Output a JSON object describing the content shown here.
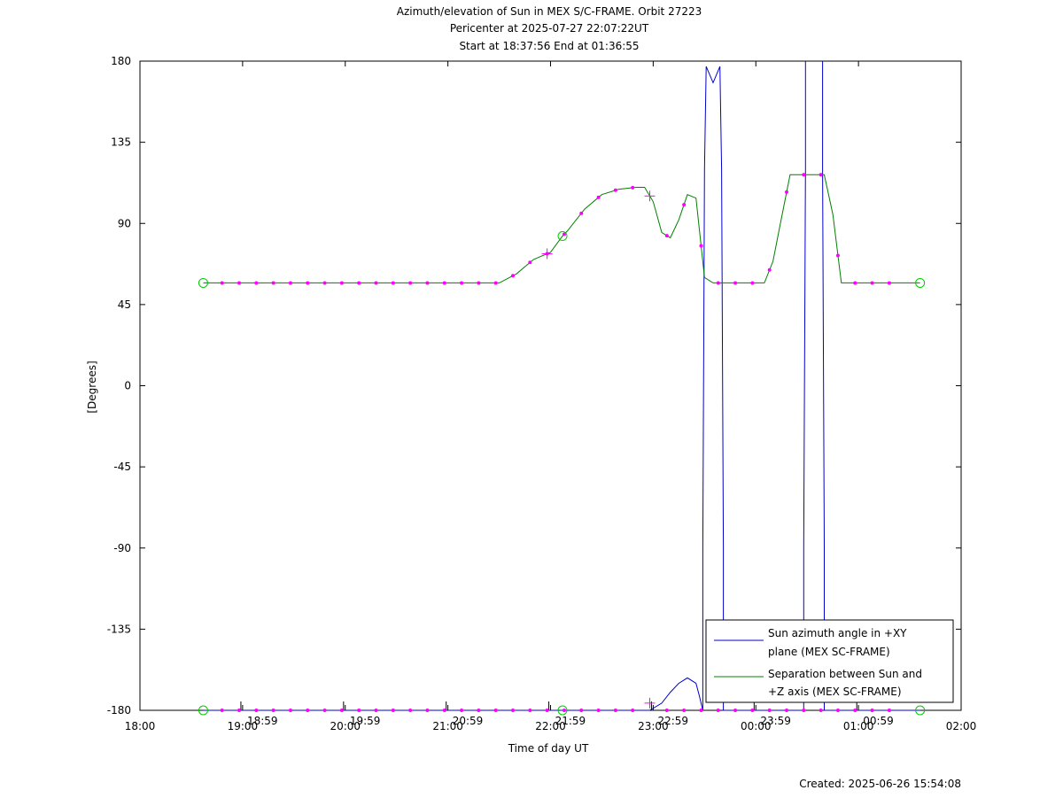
{
  "chart_data": {
    "type": "line",
    "title_lines": [
      "Azimuth/elevation of Sun in MEX S/C-FRAME.  Orbit 27223",
      "Pericenter at 2025-07-27 22:07:22UT",
      "Start at 18:37:56 End at 01:36:55"
    ],
    "xlabel": "Time of day UT",
    "ylabel": "[Degrees]",
    "xlim": [
      "18:00",
      "02:00"
    ],
    "ylim": [
      -180,
      180
    ],
    "x_ticks": [
      "18:00",
      "19:00",
      "20:00",
      "21:00",
      "22:00",
      "23:00",
      "00:00",
      "01:00",
      "02:00"
    ],
    "y_ticks": [
      180,
      135,
      90,
      45,
      0,
      -45,
      -90,
      -135,
      -180
    ],
    "secondary_time_labels": [
      "18:59",
      "19:59",
      "20:59",
      "21:59",
      "22:59",
      "23:59",
      "00:59"
    ],
    "grid": false,
    "legend_position": "bottom-right",
    "colors": {
      "azimuth": "#0000cc",
      "separation": "#008000",
      "markers": "#ff00ff",
      "endpoints": "#00cc00"
    },
    "series": [
      {
        "name": "Sun azimuth angle in +XY plane (MEX SC-FRAME)",
        "legend_lines": [
          "Sun azimuth angle in +XY",
          "plane (MEX SC-FRAME)"
        ],
        "segments": [
          {
            "x": [
              "18:37",
              "19:30",
              "20:30",
              "21:30",
              "22:30",
              "22:58",
              "23:05",
              "23:10",
              "23:15",
              "23:20",
              "23:25",
              "23:27",
              "23:29"
            ],
            "y": [
              -180,
              -180,
              -180,
              -180,
              -180,
              -180,
              -176,
              -170,
              -165,
              -162,
              -165,
              -172,
              -180
            ]
          },
          {
            "x": [
              "23:29",
              "23:29",
              "23:30",
              "23:31",
              "23:35",
              "23:39",
              "23:40",
              "23:41",
              "23:41"
            ],
            "y": [
              -180,
              -90,
              120,
              177,
              168,
              177,
              120,
              -90,
              -180
            ]
          },
          {
            "x": [
              "23:41",
              "23:55",
              "24:10",
              "24:28"
            ],
            "y": [
              -180,
              -180,
              -180,
              -180
            ]
          },
          {
            "x": [
              "24:28",
              "24:28",
              "24:29",
              "24:29"
            ],
            "y": [
              -180,
              -90,
              120,
              180
            ]
          },
          {
            "x": [
              "24:39",
              "24:39",
              "24:40",
              "24:40"
            ],
            "y": [
              180,
              120,
              -90,
              -180
            ]
          },
          {
            "x": [
              "24:40",
              "25:00",
              "25:20",
              "25:36"
            ],
            "y": [
              -180,
              -180,
              -180,
              -180
            ]
          }
        ]
      },
      {
        "name": "Separation between Sun and +Z axis (MEX SC-FRAME)",
        "legend_lines": [
          "Separation between Sun and",
          "+Z axis (MEX SC-FRAME)"
        ],
        "x": [
          "18:37",
          "21:00",
          "21:30",
          "21:40",
          "21:50",
          "22:00",
          "22:07",
          "22:10",
          "22:20",
          "22:30",
          "22:40",
          "22:50",
          "22:55",
          "23:00",
          "23:05",
          "23:10",
          "23:15",
          "23:20",
          "23:25",
          "23:30",
          "23:35",
          "23:40",
          "23:41",
          "23:45",
          "23:55",
          "24:05",
          "24:10",
          "24:15",
          "24:20",
          "24:25",
          "24:30",
          "24:40",
          "24:45",
          "24:50",
          "24:55",
          "25:00",
          "25:36"
        ],
        "y": [
          57,
          57,
          57,
          62,
          70,
          74,
          83,
          86,
          98,
          106,
          109,
          110,
          110,
          102,
          85,
          82,
          92,
          106,
          104,
          60,
          57,
          57,
          57,
          57,
          57,
          57,
          69,
          93,
          117,
          117,
          117,
          117,
          95,
          57,
          57,
          57,
          57
        ]
      }
    ],
    "markers": {
      "dots_separation": [
        "18:48",
        "18:58",
        "19:08",
        "19:18",
        "19:28",
        "19:38",
        "19:48",
        "19:58",
        "20:08",
        "20:18",
        "20:28",
        "20:38",
        "20:48",
        "20:58",
        "21:08",
        "21:18",
        "21:28",
        "21:38",
        "21:48",
        "21:58",
        "22:08",
        "22:18",
        "22:28",
        "22:38",
        "22:48",
        "23:08",
        "23:18",
        "23:28",
        "23:38",
        "23:48",
        "23:58",
        "24:08",
        "24:18",
        "24:28",
        "24:38",
        "24:48",
        "24:58",
        "25:08",
        "25:18"
      ],
      "crosses_separation": [
        "21:58",
        "22:58"
      ],
      "crosses_azimuth": [
        "22:58"
      ],
      "circles_start_end": [
        "18:37",
        "22:07",
        "25:36"
      ]
    },
    "footer": "Created: 2025-06-26 15:54:08"
  }
}
